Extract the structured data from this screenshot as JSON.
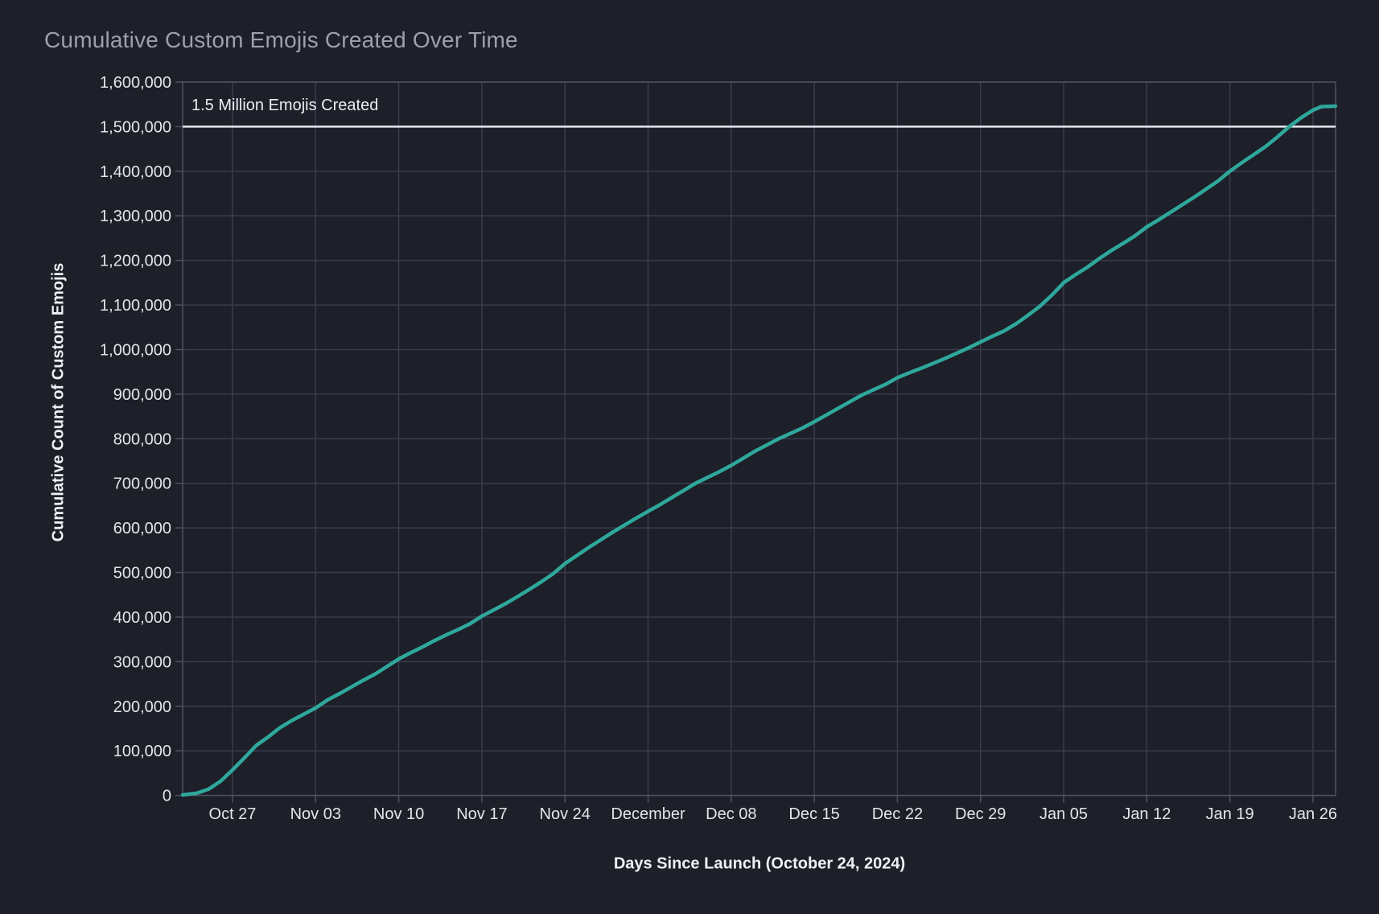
{
  "chart_data": {
    "type": "line",
    "title": "Cumulative Custom Emojis Created Over Time",
    "xlabel": "Days Since Launch (October 24, 2024)",
    "ylabel": "Cumulative Count of Custom Emojis",
    "grid": true,
    "legend": "none",
    "ylim": [
      0,
      1600000
    ],
    "y_ticks": [
      0,
      100000,
      200000,
      300000,
      400000,
      500000,
      600000,
      700000,
      800000,
      900000,
      1000000,
      1100000,
      1200000,
      1300000,
      1400000,
      1500000,
      1600000
    ],
    "x_domain_days": [
      -1.2,
      95.9
    ],
    "x_tick_days": [
      3,
      10,
      17,
      24,
      31,
      38,
      45,
      52,
      59,
      66,
      73,
      80,
      87,
      94
    ],
    "x_tick_labels": [
      "Oct 27",
      "Nov 03",
      "Nov 10",
      "Nov 17",
      "Nov 24",
      "December",
      "Dec 08",
      "Dec 15",
      "Dec 22",
      "Dec 29",
      "Jan 05",
      "Jan 12",
      "Jan 19",
      "Jan 26"
    ],
    "annotation": {
      "text": "1.5 Million Emojis Created",
      "y": 1500000
    },
    "series": [
      {
        "name": "Cumulative Custom Emojis",
        "points": [
          [
            -1.2,
            1000
          ],
          [
            0,
            5000
          ],
          [
            1,
            14000
          ],
          [
            2,
            32000
          ],
          [
            3,
            57000
          ],
          [
            4,
            84000
          ],
          [
            5,
            112000
          ],
          [
            6,
            131000
          ],
          [
            7,
            152000
          ],
          [
            8,
            168000
          ],
          [
            9,
            182000
          ],
          [
            10,
            196000
          ],
          [
            11,
            214000
          ],
          [
            12,
            228000
          ],
          [
            13,
            243000
          ],
          [
            14,
            258000
          ],
          [
            15,
            272000
          ],
          [
            16,
            289000
          ],
          [
            17,
            306000
          ],
          [
            18,
            320000
          ],
          [
            19,
            333000
          ],
          [
            20,
            347000
          ],
          [
            21,
            360000
          ],
          [
            22,
            372000
          ],
          [
            23,
            385000
          ],
          [
            24,
            402000
          ],
          [
            25,
            416000
          ],
          [
            26,
            430000
          ],
          [
            27,
            446000
          ],
          [
            28,
            462000
          ],
          [
            29,
            479000
          ],
          [
            30,
            497000
          ],
          [
            31,
            520000
          ],
          [
            32,
            538000
          ],
          [
            33,
            556000
          ],
          [
            34,
            573000
          ],
          [
            35,
            590000
          ],
          [
            36,
            606000
          ],
          [
            37,
            622000
          ],
          [
            38,
            637000
          ],
          [
            39,
            652000
          ],
          [
            40,
            668000
          ],
          [
            41,
            684000
          ],
          [
            42,
            700000
          ],
          [
            43,
            713000
          ],
          [
            44,
            726000
          ],
          [
            45,
            740000
          ],
          [
            46,
            756000
          ],
          [
            47,
            772000
          ],
          [
            48,
            786000
          ],
          [
            49,
            800000
          ],
          [
            50,
            812000
          ],
          [
            51,
            824000
          ],
          [
            52,
            838000
          ],
          [
            53,
            853000
          ],
          [
            54,
            868000
          ],
          [
            55,
            883000
          ],
          [
            56,
            898000
          ],
          [
            57,
            910000
          ],
          [
            58,
            922000
          ],
          [
            59,
            937000
          ],
          [
            60,
            948000
          ],
          [
            61,
            958000
          ],
          [
            62,
            969000
          ],
          [
            63,
            980000
          ],
          [
            64,
            992000
          ],
          [
            65,
            1004000
          ],
          [
            66,
            1017000
          ],
          [
            67,
            1030000
          ],
          [
            68,
            1042000
          ],
          [
            69,
            1058000
          ],
          [
            70,
            1077000
          ],
          [
            71,
            1097000
          ],
          [
            72,
            1122000
          ],
          [
            73,
            1150000
          ],
          [
            74,
            1168000
          ],
          [
            75,
            1185000
          ],
          [
            76,
            1204000
          ],
          [
            77,
            1222000
          ],
          [
            78,
            1238000
          ],
          [
            79,
            1255000
          ],
          [
            80,
            1275000
          ],
          [
            81,
            1291000
          ],
          [
            82,
            1308000
          ],
          [
            83,
            1325000
          ],
          [
            84,
            1342000
          ],
          [
            85,
            1360000
          ],
          [
            86,
            1378000
          ],
          [
            87,
            1400000
          ],
          [
            88,
            1419000
          ],
          [
            89,
            1437000
          ],
          [
            90,
            1455000
          ],
          [
            91,
            1477000
          ],
          [
            92,
            1500000
          ],
          [
            93,
            1520000
          ],
          [
            94,
            1537000
          ],
          [
            94.7,
            1545000
          ],
          [
            95.9,
            1546000
          ]
        ]
      }
    ],
    "colors": {
      "line": "#2fa89c",
      "reference_line": "#e6e8f0",
      "grid": "#3a3c4e",
      "spine": "#505262",
      "background": "#1d1f29",
      "tick_text": "#e4e6ed",
      "title_text": "#9ca0af",
      "axis_title_text": "#f0f1f6",
      "annotation_text": "#eceef4"
    }
  }
}
